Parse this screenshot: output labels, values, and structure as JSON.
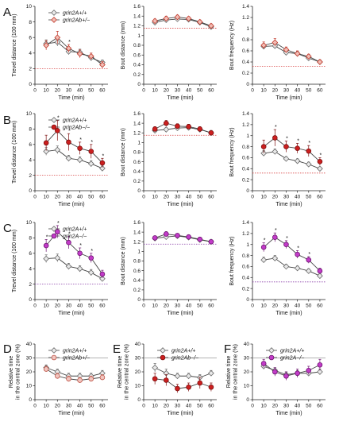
{
  "colors": {
    "wt_fill": "#e9e9e9",
    "wt_stroke": "#6a6a6a",
    "het_b_fill": "#f2bdb5",
    "het_b_stroke": "#c0392b",
    "het_a_fill": "#f1c6c0",
    "het_a_stroke": "#c0584b",
    "ko_b_fill": "#cc1f1f",
    "ko_b_stroke": "#7d1010",
    "ko_a_fill": "#c23bc8",
    "ko_a_stroke": "#6d1470",
    "baseline_red": "#d94848",
    "baseline_purple": "#8a3da8",
    "ref_gray": "#9a9a9a",
    "line": "#444444"
  },
  "chart_data": [
    {
      "panel": "A",
      "type": "line",
      "xlabel": "Time (min)",
      "ylabel": "Trevel distance (100 mm)",
      "xlim": [
        0,
        65
      ],
      "ylim": [
        0,
        10
      ],
      "xticks": [
        0,
        10,
        20,
        30,
        40,
        50,
        60
      ],
      "yticks": [
        0,
        2,
        4,
        6,
        8,
        10
      ],
      "x": [
        10,
        20,
        30,
        40,
        50,
        60
      ],
      "baseline": 2.0,
      "baseline_color": "red",
      "legend": [
        "grin2A+/+",
        "grin2Ab+/−"
      ],
      "series": [
        {
          "name": "grin2A+/+",
          "style": "wt",
          "values": [
            5.2,
            5.4,
            4.2,
            4.1,
            3.4,
            2.8
          ],
          "errors": [
            0.5,
            0.5,
            0.4,
            0.4,
            0.4,
            0.3
          ]
        },
        {
          "name": "grin2Ab+/−",
          "style": "het_b",
          "values": [
            5.0,
            6.0,
            4.6,
            3.9,
            3.6,
            2.5
          ],
          "errors": [
            0.6,
            0.8,
            0.5,
            0.5,
            0.4,
            0.4
          ]
        }
      ],
      "stars_x": [
        30
      ]
    },
    {
      "panel": "",
      "type": "line",
      "xlabel": "Time (min)",
      "ylabel": "Bout distance (mm)",
      "xlim": [
        0,
        65
      ],
      "ylim": [
        0,
        1.6
      ],
      "xticks": [
        0,
        10,
        20,
        30,
        40,
        50,
        60
      ],
      "yticks": [
        0,
        0.2,
        0.4,
        0.6,
        0.8,
        1.0,
        1.2,
        1.4,
        1.6
      ],
      "x": [
        10,
        20,
        30,
        40,
        50,
        60
      ],
      "baseline": 1.15,
      "baseline_color": "red",
      "legend": [],
      "series": [
        {
          "name": "",
          "style": "wt",
          "values": [
            1.27,
            1.32,
            1.34,
            1.33,
            1.27,
            1.18
          ],
          "errors": [
            0.04,
            0.04,
            0.04,
            0.04,
            0.04,
            0.04
          ]
        },
        {
          "name": "",
          "style": "het_b",
          "values": [
            1.3,
            1.35,
            1.38,
            1.35,
            1.28,
            1.2
          ],
          "errors": [
            0.04,
            0.05,
            0.04,
            0.04,
            0.04,
            0.04
          ]
        }
      ],
      "stars_x": []
    },
    {
      "panel": "",
      "type": "line",
      "xlabel": "Time (min)",
      "ylabel": "Bout frequency (Hz)",
      "xlim": [
        0,
        65
      ],
      "ylim": [
        0,
        1.4
      ],
      "xticks": [
        0,
        10,
        20,
        30,
        40,
        50,
        60
      ],
      "yticks": [
        0,
        0.2,
        0.4,
        0.6,
        0.8,
        1.0,
        1.2,
        1.4
      ],
      "x": [
        10,
        20,
        30,
        40,
        50,
        60
      ],
      "baseline": 0.32,
      "baseline_color": "red",
      "legend": [],
      "series": [
        {
          "name": "",
          "style": "wt",
          "values": [
            0.68,
            0.69,
            0.57,
            0.55,
            0.47,
            0.4
          ],
          "errors": [
            0.05,
            0.05,
            0.04,
            0.04,
            0.04,
            0.03
          ]
        },
        {
          "name": "",
          "style": "het_b",
          "values": [
            0.7,
            0.75,
            0.62,
            0.55,
            0.5,
            0.4
          ],
          "errors": [
            0.06,
            0.07,
            0.05,
            0.05,
            0.04,
            0.04
          ]
        }
      ],
      "stars_x": []
    },
    {
      "panel": "B",
      "type": "line",
      "xlabel": "Time (min)",
      "ylabel": "Trevel distance (100 mm)",
      "xlim": [
        0,
        65
      ],
      "ylim": [
        0,
        10
      ],
      "xticks": [
        0,
        10,
        20,
        30,
        40,
        50,
        60
      ],
      "yticks": [
        0,
        2,
        4,
        6,
        8,
        10
      ],
      "x": [
        10,
        20,
        30,
        40,
        50,
        60
      ],
      "baseline": 2.0,
      "baseline_color": "red",
      "legend": [
        "grin2A+/+",
        "grin2Ab−/−"
      ],
      "series": [
        {
          "name": "grin2A+/+",
          "style": "wt",
          "values": [
            5.1,
            5.3,
            4.2,
            4.0,
            3.5,
            2.9
          ],
          "errors": [
            0.5,
            0.5,
            0.4,
            0.4,
            0.4,
            0.3
          ]
        },
        {
          "name": "grin2Ab−/−",
          "style": "ko_b",
          "values": [
            6.2,
            7.8,
            6.3,
            5.5,
            5.1,
            3.6
          ],
          "errors": [
            1.0,
            1.3,
            1.1,
            0.8,
            0.9,
            0.6
          ]
        }
      ],
      "stars_x": [
        20,
        30,
        40,
        50,
        60
      ]
    },
    {
      "panel": "",
      "type": "line",
      "xlabel": "Time (min)",
      "ylabel": "Bout distance (mm)",
      "xlim": [
        0,
        65
      ],
      "ylim": [
        0,
        1.6
      ],
      "xticks": [
        0,
        10,
        20,
        30,
        40,
        50,
        60
      ],
      "yticks": [
        0,
        0.2,
        0.4,
        0.6,
        0.8,
        1.0,
        1.2,
        1.4,
        1.6
      ],
      "x": [
        10,
        20,
        30,
        40,
        50,
        60
      ],
      "baseline": 1.15,
      "baseline_color": "red",
      "legend": [],
      "series": [
        {
          "name": "",
          "style": "wt",
          "values": [
            1.25,
            1.27,
            1.3,
            1.31,
            1.27,
            1.2
          ],
          "errors": [
            0.04,
            0.04,
            0.04,
            0.04,
            0.04,
            0.04
          ]
        },
        {
          "name": "",
          "style": "ko_b",
          "values": [
            1.28,
            1.4,
            1.34,
            1.33,
            1.28,
            1.2
          ],
          "errors": [
            0.05,
            0.06,
            0.05,
            0.05,
            0.05,
            0.05
          ]
        }
      ],
      "stars_x": []
    },
    {
      "panel": "",
      "type": "line",
      "xlabel": "Time (min)",
      "ylabel": "Bout frequency (Hz)",
      "xlim": [
        0,
        65
      ],
      "ylim": [
        0,
        1.4
      ],
      "xticks": [
        0,
        10,
        20,
        30,
        40,
        50,
        60
      ],
      "yticks": [
        0,
        0.2,
        0.4,
        0.6,
        0.8,
        1.0,
        1.2,
        1.4
      ],
      "x": [
        10,
        20,
        30,
        40,
        50,
        60
      ],
      "baseline": 0.32,
      "baseline_color": "red",
      "legend": [],
      "series": [
        {
          "name": "",
          "style": "wt",
          "values": [
            0.68,
            0.71,
            0.58,
            0.54,
            0.48,
            0.4
          ],
          "errors": [
            0.05,
            0.05,
            0.04,
            0.04,
            0.04,
            0.03
          ]
        },
        {
          "name": "",
          "style": "ko_b",
          "values": [
            0.8,
            0.96,
            0.8,
            0.77,
            0.72,
            0.53
          ],
          "errors": [
            0.12,
            0.15,
            0.1,
            0.09,
            0.1,
            0.07
          ]
        }
      ],
      "stars_x": [
        20,
        30,
        40,
        50,
        60
      ]
    },
    {
      "panel": "C",
      "type": "line",
      "xlabel": "Time (min)",
      "ylabel": "Trevel distance (100 mm)",
      "xlim": [
        0,
        65
      ],
      "ylim": [
        0,
        10
      ],
      "xticks": [
        0,
        10,
        20,
        30,
        40,
        50,
        60
      ],
      "yticks": [
        0,
        2,
        4,
        6,
        8,
        10
      ],
      "x": [
        10,
        20,
        30,
        40,
        50,
        60
      ],
      "baseline": 2.0,
      "baseline_color": "purple",
      "legend": [
        "grin2A+/+",
        "grin2A−/−"
      ],
      "series": [
        {
          "name": "grin2A+/+",
          "style": "wt",
          "values": [
            5.3,
            5.4,
            4.3,
            4.0,
            3.5,
            2.7
          ],
          "errors": [
            0.5,
            0.5,
            0.4,
            0.4,
            0.4,
            0.3
          ]
        },
        {
          "name": "grin2A−/−",
          "style": "ko_a",
          "values": [
            7.0,
            8.8,
            7.4,
            6.0,
            5.4,
            3.3
          ],
          "errors": [
            0.8,
            0.8,
            0.8,
            0.7,
            0.6,
            0.5
          ]
        }
      ],
      "stars_x": [
        10,
        20,
        30,
        40,
        50
      ]
    },
    {
      "panel": "",
      "type": "line",
      "xlabel": "Time (min)",
      "ylabel": "Bout distance (mm)",
      "xlim": [
        0,
        65
      ],
      "ylim": [
        0,
        1.6
      ],
      "xticks": [
        0,
        10,
        20,
        30,
        40,
        50,
        60
      ],
      "yticks": [
        0,
        0.2,
        0.4,
        0.6,
        0.8,
        1.0,
        1.2,
        1.4,
        1.6
      ],
      "x": [
        10,
        20,
        30,
        40,
        50,
        60
      ],
      "baseline": 1.15,
      "baseline_color": "purple",
      "legend": [],
      "series": [
        {
          "name": "",
          "style": "wt",
          "values": [
            1.27,
            1.3,
            1.32,
            1.29,
            1.24,
            1.2
          ],
          "errors": [
            0.04,
            0.04,
            0.04,
            0.04,
            0.04,
            0.04
          ]
        },
        {
          "name": "",
          "style": "ko_a",
          "values": [
            1.28,
            1.36,
            1.33,
            1.3,
            1.25,
            1.2
          ],
          "errors": [
            0.04,
            0.05,
            0.04,
            0.04,
            0.04,
            0.04
          ]
        }
      ],
      "stars_x": []
    },
    {
      "panel": "",
      "type": "line",
      "xlabel": "Time (min)",
      "ylabel": "Bout frequency (Hz)",
      "xlim": [
        0,
        65
      ],
      "ylim": [
        0,
        1.4
      ],
      "xticks": [
        0,
        10,
        20,
        30,
        40,
        50,
        60
      ],
      "yticks": [
        0,
        0.2,
        0.4,
        0.6,
        0.8,
        1.0,
        1.2,
        1.4
      ],
      "x": [
        10,
        20,
        30,
        40,
        50,
        60
      ],
      "baseline": 0.32,
      "baseline_color": "purple",
      "legend": [],
      "series": [
        {
          "name": "",
          "style": "wt",
          "values": [
            0.72,
            0.75,
            0.6,
            0.57,
            0.52,
            0.43
          ],
          "errors": [
            0.05,
            0.05,
            0.04,
            0.04,
            0.04,
            0.04
          ]
        },
        {
          "name": "",
          "style": "ko_a",
          "values": [
            0.95,
            1.13,
            1.0,
            0.82,
            0.72,
            0.52
          ],
          "errors": [
            0.08,
            0.08,
            0.07,
            0.07,
            0.06,
            0.05
          ]
        }
      ],
      "stars_x": [
        10,
        20,
        30,
        40,
        50
      ]
    },
    {
      "panel": "D",
      "type": "line",
      "xlabel": "Time (min)",
      "ylabel": [
        "Relative time",
        "in the central zone (%)"
      ],
      "xlim": [
        0,
        65
      ],
      "ylim": [
        0,
        40
      ],
      "xticks": [
        0,
        10,
        20,
        30,
        40,
        50,
        60
      ],
      "yticks": [
        0,
        10,
        20,
        30,
        40
      ],
      "x": [
        10,
        20,
        30,
        40,
        50,
        60
      ],
      "baseline": 30,
      "baseline_color": "gray",
      "legend": [
        "grin2A+/+",
        "grin2Ab+/−"
      ],
      "series": [
        {
          "name": "grin2A+/+",
          "style": "wt",
          "values": [
            23,
            20,
            17,
            17,
            17,
            19
          ],
          "errors": [
            2,
            2,
            2,
            2,
            2,
            2
          ]
        },
        {
          "name": "grin2Ab+/−",
          "style": "het_a",
          "values": [
            22,
            17,
            15,
            14,
            15,
            16
          ],
          "errors": [
            2,
            2,
            2,
            2,
            2,
            2
          ]
        }
      ],
      "stars_x": []
    },
    {
      "panel": "E",
      "type": "line",
      "xlabel": "Time (min)",
      "ylabel": [
        "Relative time",
        "in the central zone (%)"
      ],
      "xlim": [
        0,
        65
      ],
      "ylim": [
        0,
        40
      ],
      "xticks": [
        0,
        10,
        20,
        30,
        40,
        50,
        60
      ],
      "yticks": [
        0,
        10,
        20,
        30,
        40
      ],
      "x": [
        10,
        20,
        30,
        40,
        50,
        60
      ],
      "baseline": 30,
      "baseline_color": "gray",
      "legend": [
        "grin2A+/+",
        "grin2Ab−/−"
      ],
      "series": [
        {
          "name": "grin2A+/+",
          "style": "wt",
          "values": [
            23,
            19,
            17,
            17,
            16,
            19
          ],
          "errors": [
            3,
            3,
            2,
            2,
            2,
            2
          ]
        },
        {
          "name": "grin2Ab−/−",
          "style": "ko_b",
          "values": [
            15,
            14,
            8,
            9,
            12,
            9
          ],
          "errors": [
            4,
            4,
            3,
            3,
            4,
            3
          ]
        }
      ],
      "stars_x": []
    },
    {
      "panel": "F",
      "type": "line",
      "xlabel": "Time (min)",
      "ylabel": [
        "Relative time",
        "in the central zone (%)"
      ],
      "xlim": [
        0,
        65
      ],
      "ylim": [
        0,
        40
      ],
      "xticks": [
        0,
        10,
        20,
        30,
        40,
        50,
        60
      ],
      "yticks": [
        0,
        10,
        20,
        30,
        40
      ],
      "x": [
        10,
        20,
        30,
        40,
        50,
        60
      ],
      "baseline": 30,
      "baseline_color": "gray",
      "legend": [
        "grin2A+/+",
        "grin2A−/−"
      ],
      "series": [
        {
          "name": "grin2A+/+",
          "style": "wt",
          "values": [
            24,
            21,
            18,
            19,
            19,
            20
          ],
          "errors": [
            2,
            2,
            2,
            2,
            2,
            2
          ]
        },
        {
          "name": "grin2A−/−",
          "style": "ko_a",
          "values": [
            26,
            20,
            17,
            19,
            21,
            25
          ],
          "errors": [
            3,
            3,
            3,
            3,
            3,
            4
          ]
        }
      ],
      "stars_x": []
    }
  ]
}
